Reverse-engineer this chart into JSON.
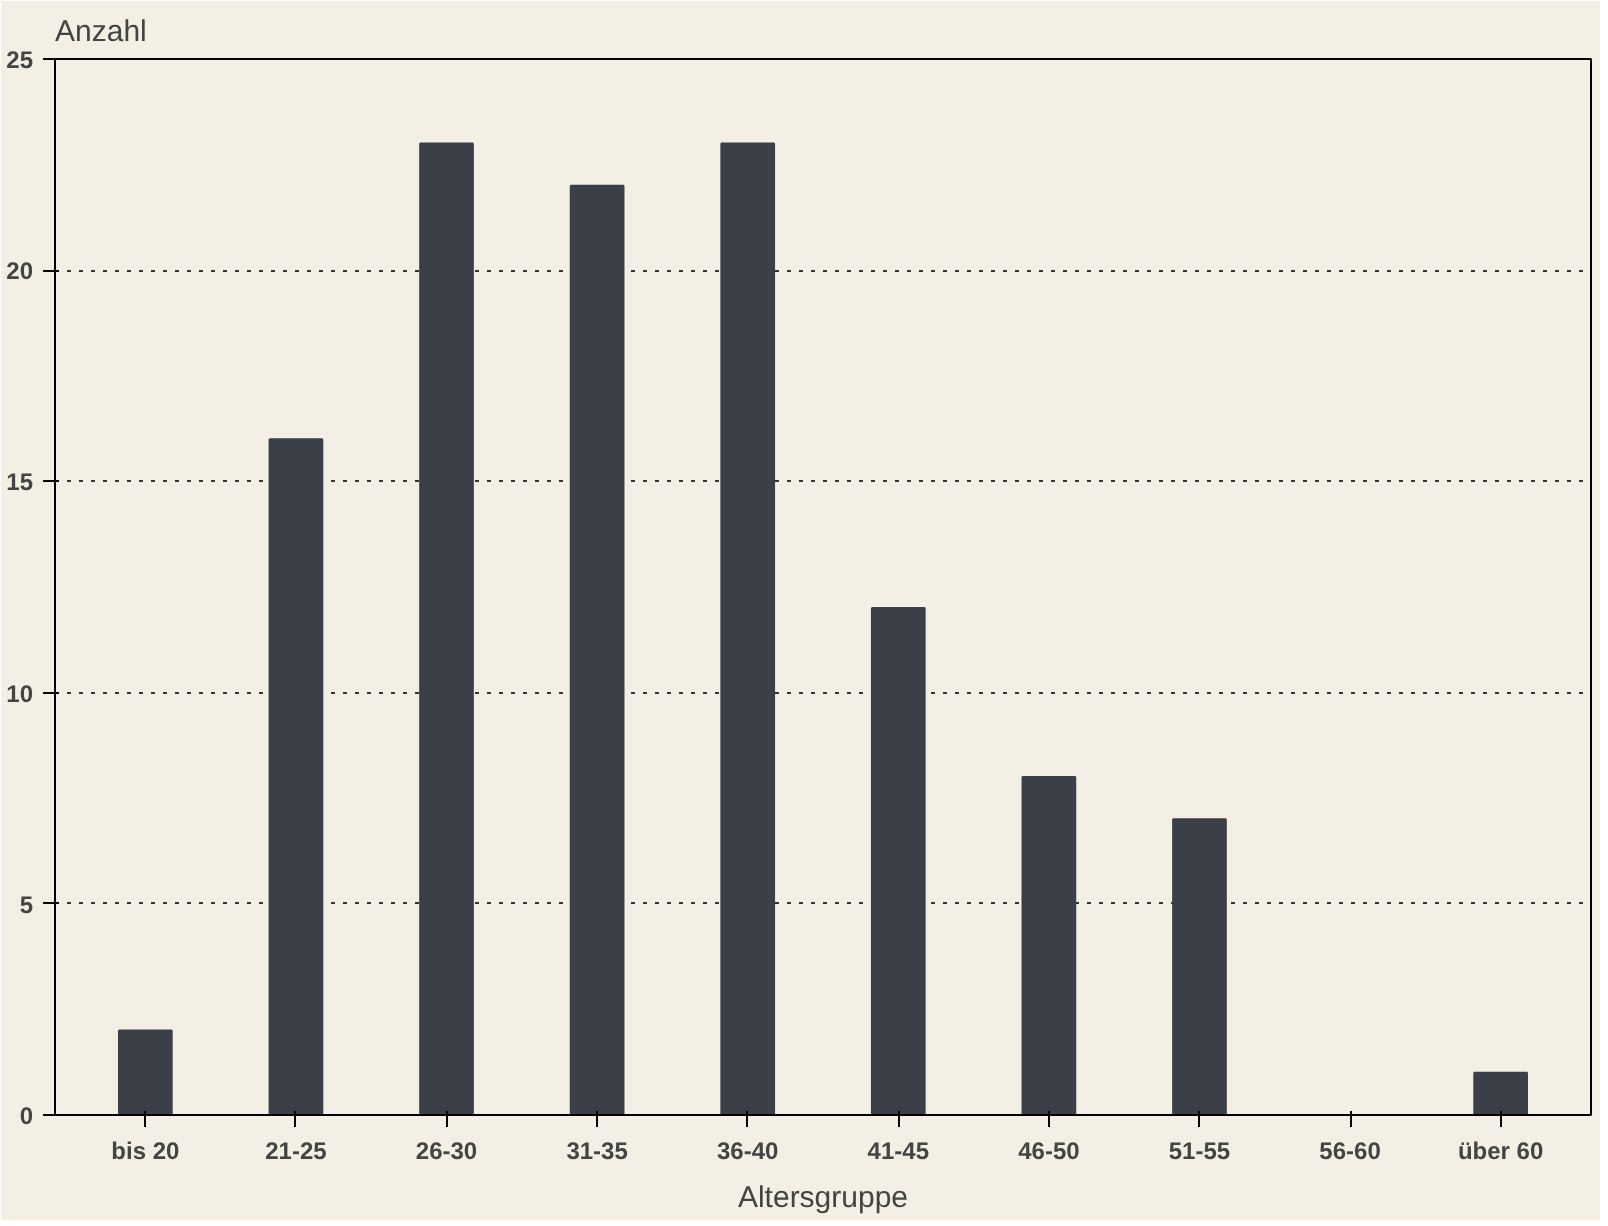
{
  "chart_data": {
    "type": "bar",
    "xlabel": "Altersgruppe",
    "ylabel": "Anzahl",
    "categories": [
      "bis 20",
      "21-25",
      "26-30",
      "31-35",
      "36-40",
      "41-45",
      "46-50",
      "51-55",
      "56-60",
      "über 60"
    ],
    "values": [
      2,
      16,
      23,
      22,
      23,
      12,
      8,
      7,
      0,
      1
    ],
    "color": "#3b3f47",
    "ylim": [
      0,
      25
    ],
    "yticks": [
      0,
      5,
      10,
      15,
      20,
      25
    ],
    "grid": "y"
  }
}
